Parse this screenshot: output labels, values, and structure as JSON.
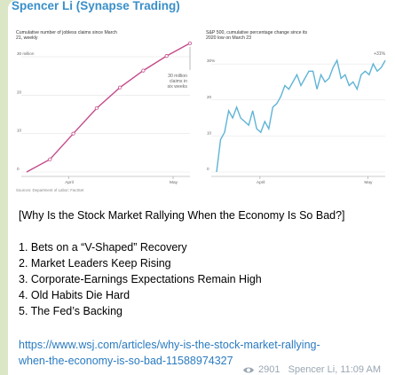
{
  "message": {
    "sender": "Spencer Li (Synapse Trading)",
    "headline": "[Why Is the Stock Market Rallying When the Economy Is So Bad?]",
    "points": [
      "1. Bets on a “V-Shaped” Recovery",
      "2. Market Leaders Keep Rising",
      "3. Corporate-Earnings Expectations Remain High",
      "4. Old Habits Die Hard",
      "5. The Fed’s Backing"
    ],
    "link_line1": "https://www.wsj.com/articles/why-is-the-stock-market-rallying-",
    "link_line2": "when-the-economy-is-so-bad-11588974327",
    "views": "2901",
    "signature": "Spencer Li, 11:09 AM"
  },
  "colors": {
    "sender": "#3a8fc8",
    "link": "#2a7bc0",
    "jobless_line": "#c44b8a",
    "sp500_line": "#5fb4d6"
  },
  "chart_data": [
    {
      "type": "line",
      "title": "Cumulative number of jobless claims since March 21, weekly",
      "xlabel": "",
      "ylabel": "",
      "xticks": [
        "April",
        "May"
      ],
      "yticks": [
        "0",
        "10",
        "20",
        "30 million"
      ],
      "ylim": [
        0,
        30
      ],
      "annotation": "30 million claims in six weeks",
      "source": "Sources: Department of Labor; FactSet",
      "x": [
        "Mar 14",
        "Mar 21",
        "Mar 28",
        "Apr 4",
        "Apr 11",
        "Apr 18",
        "Apr 25",
        "May 2"
      ],
      "values": [
        0,
        3.3,
        10.0,
        16.6,
        22.0,
        26.4,
        30.2,
        33.5
      ]
    },
    {
      "type": "line",
      "title": "S&P 500, cumulative percentage change since its 2020 low on March 23",
      "xlabel": "",
      "ylabel": "",
      "xticks": [
        "April",
        "May"
      ],
      "yticks": [
        "0",
        "10",
        "20",
        "30%"
      ],
      "ylim": [
        0,
        32
      ],
      "annotation": "+31%",
      "values": [
        0,
        9,
        11,
        17,
        15,
        18,
        15,
        14,
        13,
        17,
        12,
        11,
        14,
        12,
        18,
        19,
        21,
        24,
        23,
        25,
        27,
        24,
        26,
        28,
        28,
        23,
        27,
        25,
        26,
        29,
        31,
        26,
        27,
        24,
        25,
        23,
        27,
        28,
        27,
        30,
        28,
        29,
        31
      ]
    }
  ]
}
